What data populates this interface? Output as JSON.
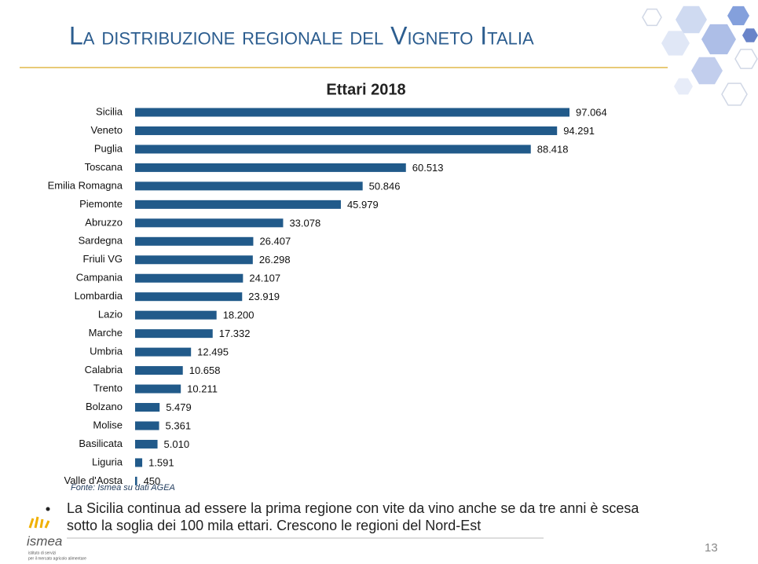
{
  "slide": {
    "title": "La distribuzione regionale del Vigneto Italia",
    "source": "Fonte: Ismea su dati AGEA",
    "bullet_lines": [
      "La Sicilia continua ad essere la prima regione con vite da vino anche se da tre anni è scesa",
      "sotto la soglia dei 100 mila ettari. Crescono le regioni del Nord-Est"
    ],
    "logo": {
      "name": "ismea",
      "tagline_lines": [
        "istituto di servizi",
        "per il mercato agricolo alimentare"
      ]
    },
    "page_number": "13"
  },
  "chart_data": {
    "type": "hbar",
    "title": "Ettari 2018",
    "color": "#215a8a",
    "categories": [
      "Sicilia",
      "Veneto",
      "Puglia",
      "Toscana",
      "Emilia Romagna",
      "Piemonte",
      "Abruzzo",
      "Sardegna",
      "Friuli VG",
      "Campania",
      "Lombardia",
      "Lazio",
      "Marche",
      "Umbria",
      "Calabria",
      "Trento",
      "Bolzano",
      "Molise",
      "Basilicata",
      "Liguria",
      "Valle d'Aosta"
    ],
    "values": [
      97064,
      94291,
      88418,
      60513,
      50846,
      45979,
      33078,
      26407,
      26298,
      24107,
      23919,
      18200,
      17332,
      12495,
      10658,
      10211,
      5479,
      5361,
      5010,
      1591,
      450
    ],
    "value_labels": [
      "97.064",
      "94.291",
      "88.418",
      "60.513",
      "50.846",
      "45.979",
      "33.078",
      "26.407",
      "26.298",
      "24.107",
      "23.919",
      "18.200",
      "17.332",
      "12.495",
      "10.658",
      "10.211",
      "5.479",
      "5.361",
      "5.010",
      "1.591",
      "450"
    ]
  }
}
